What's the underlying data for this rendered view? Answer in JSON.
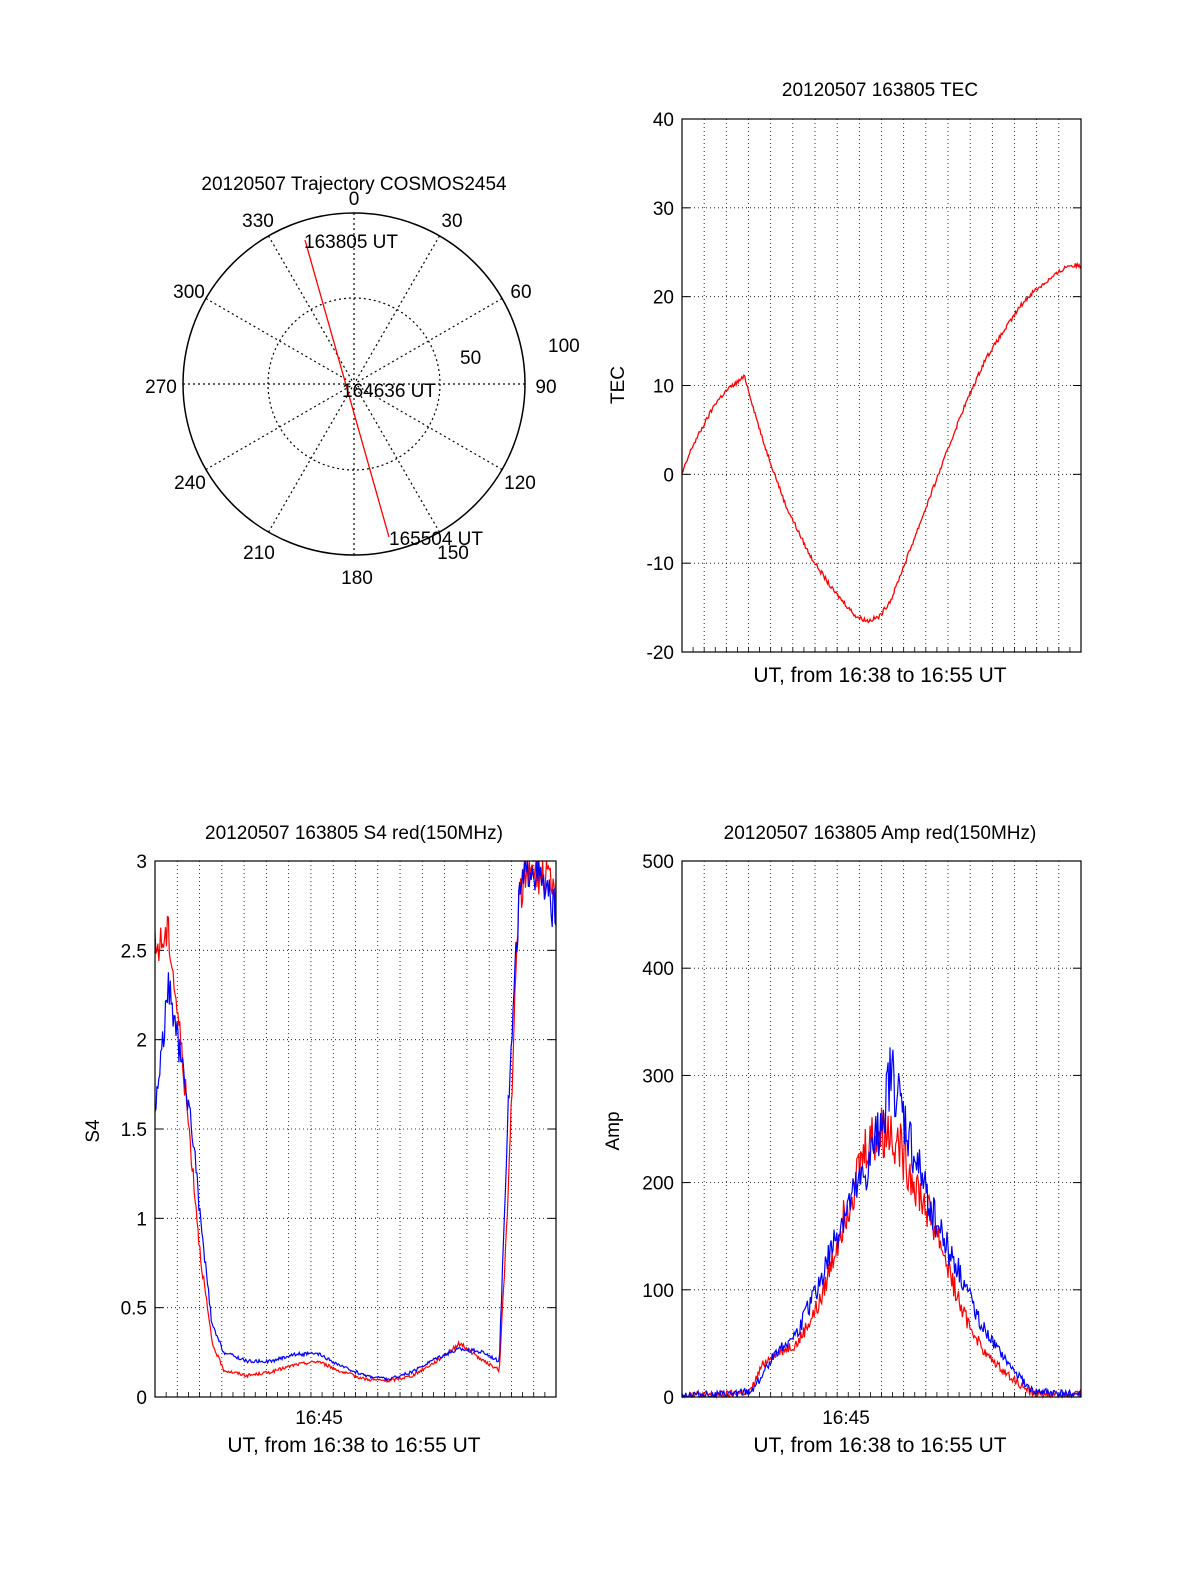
{
  "page": {
    "background": "#ffffff"
  },
  "chart_data": [
    {
      "id": "trajectory",
      "type": "polar",
      "title": "20120507 Trajectory COSMOS2454",
      "angle_labels": [
        "0",
        "30",
        "60",
        "90",
        "120",
        "150",
        "180",
        "210",
        "240",
        "270",
        "300",
        "330"
      ],
      "radial_labels": [
        "50",
        "100"
      ],
      "rlim": [
        0,
        100
      ],
      "grid": true,
      "track": {
        "color": "#ff0000",
        "points": [
          {
            "label": "163805 UT",
            "azimuth": 340,
            "zenith_angle": 85
          },
          {
            "label": "164636 UT",
            "azimuth": 0,
            "zenith_angle": 0
          },
          {
            "label": "165504 UT",
            "azimuth": 160,
            "zenith_angle": 90
          }
        ]
      }
    },
    {
      "id": "tec",
      "type": "line",
      "title": "20120507 163805 TEC",
      "xlabel": "UT, from 16:38 to 16:55 UT",
      "ylabel": "TEC",
      "xlim": [
        "16:38:05",
        "16:55:04"
      ],
      "ylim": [
        -20,
        40
      ],
      "yticks": [
        "-20",
        "-10",
        "0",
        "10",
        "20",
        "30",
        "40"
      ],
      "grid": true,
      "series": [
        {
          "color": "#ff0000",
          "x": [
            "16:38:05",
            "16:38:30",
            "16:39:00",
            "16:39:30",
            "16:40:00",
            "16:40:45",
            "16:41:30",
            "16:42:30",
            "16:43:30",
            "16:44:30",
            "16:45:30",
            "16:46:00",
            "16:46:30",
            "16:47:00",
            "16:48:00",
            "16:49:00",
            "16:50:00",
            "16:51:00",
            "16:52:00",
            "16:52:30",
            "16:53:00",
            "16:53:30",
            "16:54:00",
            "16:54:30",
            "16:55:04"
          ],
          "y": [
            0,
            3,
            5.5,
            8,
            9.5,
            11,
            4,
            -3.5,
            -9,
            -13,
            -16,
            -16.5,
            -16,
            -14,
            -7,
            0,
            7,
            13,
            17,
            19,
            20.5,
            21.5,
            22.5,
            23.5,
            23.5
          ]
        }
      ]
    },
    {
      "id": "s4",
      "type": "line",
      "title": "20120507 163805 S4 red(150MHz)",
      "xlabel": "UT, from 16:38 to 16:55 UT",
      "ylabel": "S4",
      "xtick_label": "16:45",
      "xlim": [
        "16:38:05",
        "16:55:04"
      ],
      "ylim": [
        0,
        3
      ],
      "yticks": [
        "0",
        "0.5",
        "1",
        "1.5",
        "2",
        "2.5",
        "3"
      ],
      "grid": true,
      "series": [
        {
          "color": "#ff0000",
          "x": [
            "16:38:05",
            "16:38:40",
            "16:39:10",
            "16:39:40",
            "16:40:00",
            "16:40:30",
            "16:41:00",
            "16:42:00",
            "16:43:00",
            "16:44:00",
            "16:45:00",
            "16:46:00",
            "16:47:00",
            "16:48:00",
            "16:49:00",
            "16:50:00",
            "16:51:00",
            "16:52:00",
            "16:52:40",
            "16:53:00",
            "16:53:30",
            "16:54:00",
            "16:55:04"
          ],
          "y": [
            2.5,
            2.6,
            2.0,
            1.3,
            0.8,
            0.3,
            0.15,
            0.12,
            0.14,
            0.18,
            0.2,
            0.14,
            0.1,
            0.09,
            0.12,
            0.2,
            0.3,
            0.2,
            0.15,
            1.0,
            2.8,
            3.0,
            2.8
          ]
        },
        {
          "color": "#0000ff",
          "x": [
            "16:38:05",
            "16:38:40",
            "16:39:10",
            "16:39:40",
            "16:40:00",
            "16:40:30",
            "16:41:00",
            "16:42:00",
            "16:43:00",
            "16:44:00",
            "16:45:00",
            "16:46:00",
            "16:47:00",
            "16:48:00",
            "16:49:00",
            "16:50:00",
            "16:51:00",
            "16:52:00",
            "16:52:40",
            "16:53:00",
            "16:53:30",
            "16:54:00",
            "16:55:04"
          ],
          "y": [
            1.6,
            2.3,
            1.9,
            1.5,
            1.0,
            0.4,
            0.25,
            0.2,
            0.2,
            0.24,
            0.24,
            0.17,
            0.12,
            0.1,
            0.14,
            0.22,
            0.27,
            0.25,
            0.2,
            1.5,
            2.8,
            3.0,
            2.7
          ]
        }
      ]
    },
    {
      "id": "amp",
      "type": "line",
      "title": "20120507 163805 Amp red(150MHz)",
      "xlabel": "UT, from 16:38 to 16:55 UT",
      "ylabel": "Amp",
      "xtick_label": "16:45",
      "xlim": [
        "16:38:05",
        "16:55:04"
      ],
      "ylim": [
        0,
        500
      ],
      "yticks": [
        "0",
        "100",
        "200",
        "300",
        "400",
        "500"
      ],
      "grid": true,
      "series": [
        {
          "color": "#ff0000",
          "x": [
            "16:38:05",
            "16:40:00",
            "16:41:00",
            "16:41:30",
            "16:42:00",
            "16:43:00",
            "16:44:00",
            "16:45:00",
            "16:46:00",
            "16:47:00",
            "16:48:00",
            "16:49:00",
            "16:50:00",
            "16:51:00",
            "16:52:00",
            "16:53:00",
            "16:55:04"
          ],
          "y": [
            2,
            2,
            5,
            30,
            40,
            50,
            90,
            170,
            240,
            250,
            200,
            150,
            80,
            40,
            20,
            3,
            2
          ]
        },
        {
          "color": "#0000ff",
          "x": [
            "16:38:05",
            "16:40:00",
            "16:41:00",
            "16:41:30",
            "16:42:00",
            "16:43:00",
            "16:44:00",
            "16:45:00",
            "16:46:00",
            "16:47:00",
            "16:48:00",
            "16:49:00",
            "16:50:00",
            "16:51:00",
            "16:52:00",
            "16:53:00",
            "16:55:04"
          ],
          "y": [
            2,
            2,
            5,
            20,
            40,
            60,
            110,
            170,
            210,
            300,
            220,
            160,
            110,
            60,
            30,
            5,
            2
          ]
        }
      ]
    }
  ]
}
